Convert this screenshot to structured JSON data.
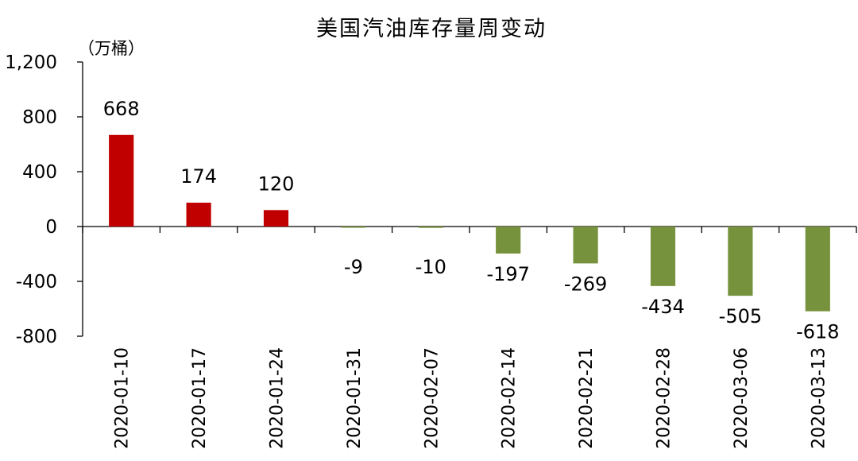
{
  "chart_data": {
    "type": "bar",
    "title": "美国汽油库存量周变动",
    "unit_label": "（万桶）",
    "categories": [
      "2020-01-10",
      "2020-01-17",
      "2020-01-24",
      "2020-01-31",
      "2020-02-07",
      "2020-02-14",
      "2020-02-21",
      "2020-02-28",
      "2020-03-06",
      "2020-03-13"
    ],
    "values": [
      668,
      174,
      120,
      -9,
      -10,
      -197,
      -269,
      -434,
      -505,
      -618
    ],
    "ylim": [
      -800,
      1200
    ],
    "yticks": [
      1200,
      800,
      400,
      0,
      -400,
      -800
    ],
    "ytick_labels": [
      "1,200",
      "800",
      "400",
      "0",
      "-400",
      "-800"
    ],
    "positive_color": "#c00000",
    "negative_color": "#76923c",
    "grid": false,
    "legend": "none"
  }
}
